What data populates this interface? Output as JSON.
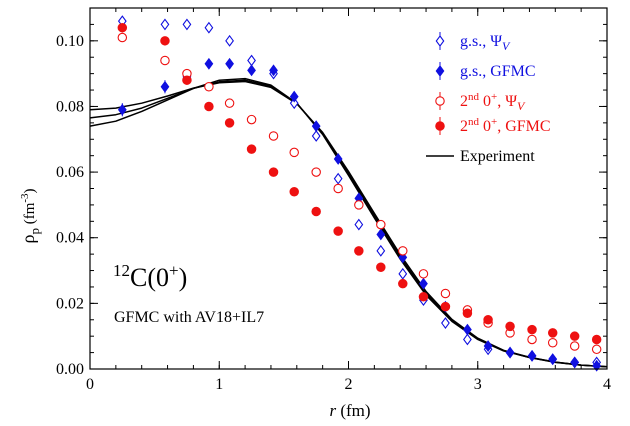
{
  "chart_data": {
    "type": "scatter",
    "xlabel": "r (fm)",
    "xlabel_italic": "r",
    "xlabel_unit": " (fm)",
    "ylabel": "ρp (fm-3)",
    "ylabel_base": "ρ",
    "ylabel_sub": "p",
    "ylabel_unit": " (fm",
    "ylabel_unit_sup": "-3",
    "ylabel_unit_close": ")",
    "xlim": [
      0,
      4
    ],
    "ylim": [
      0,
      0.11
    ],
    "x_ticks": [
      0,
      1,
      2,
      3,
      4
    ],
    "x_tick_labels": [
      "0",
      "1",
      "2",
      "3",
      "4"
    ],
    "y_ticks": [
      0,
      0.02,
      0.04,
      0.06,
      0.08,
      0.1
    ],
    "y_tick_labels": [
      "0.00",
      "0.02",
      "0.04",
      "0.06",
      "0.08",
      "0.10"
    ],
    "grid": false,
    "legend_placement": "top-right",
    "annotation": {
      "line1_sup": "12",
      "line1_main": "C(0",
      "line1_sup2": "+",
      "line1_close": ")",
      "line2": "GFMC with AV18+IL7"
    },
    "colors": {
      "blue": "#1010e0",
      "red": "#ee1111",
      "black": "#000000"
    },
    "series": [
      {
        "name": "g.s., ΨV",
        "legend_parts": [
          "g.s., Ψ",
          "V"
        ],
        "marker": "diamond-open",
        "color": "#1010e0",
        "x": [
          0.25,
          0.58,
          0.75,
          0.92,
          1.08,
          1.25,
          1.42,
          1.58,
          1.75,
          1.92,
          2.08,
          2.25,
          2.42,
          2.58,
          2.75,
          2.92,
          3.08,
          3.25,
          3.42,
          3.58,
          3.75,
          3.92
        ],
        "y": [
          0.106,
          0.105,
          0.105,
          0.104,
          0.1,
          0.094,
          0.09,
          0.081,
          0.071,
          0.058,
          0.044,
          0.036,
          0.029,
          0.021,
          0.014,
          0.009,
          0.006,
          0.005,
          0.004,
          0.003,
          0.002,
          0.002
        ]
      },
      {
        "name": "g.s., GFMC",
        "legend_parts": [
          "g.s., GFMC"
        ],
        "marker": "diamond-filled",
        "color": "#1010e0",
        "x": [
          0.25,
          0.58,
          0.75,
          0.92,
          1.08,
          1.25,
          1.42,
          1.58,
          1.75,
          1.92,
          2.08,
          2.25,
          2.42,
          2.58,
          2.75,
          2.92,
          3.08,
          3.25,
          3.42,
          3.58,
          3.75,
          3.92
        ],
        "y": [
          0.079,
          0.086,
          0.089,
          0.093,
          0.093,
          0.091,
          0.091,
          0.083,
          0.074,
          0.064,
          0.052,
          0.041,
          0.034,
          0.026,
          0.019,
          0.012,
          0.007,
          0.005,
          0.004,
          0.003,
          0.002,
          0.001
        ],
        "yerr": [
          0.002,
          0.002,
          0.001,
          0.001,
          0.001,
          0.001,
          0.001,
          0.001,
          0.001,
          0.001,
          0.001,
          0.001,
          0.001,
          0.001,
          0.001,
          0.001,
          0.001,
          0.001,
          0.001,
          0.001,
          0.001,
          0.001
        ]
      },
      {
        "name": "2nd 0+, ΨV",
        "legend_parts": [
          "2",
          "nd",
          " 0",
          "+",
          ", Ψ",
          "V"
        ],
        "marker": "circle-open",
        "color": "#ee1111",
        "x": [
          0.25,
          0.58,
          0.75,
          0.92,
          1.08,
          1.25,
          1.42,
          1.58,
          1.75,
          1.92,
          2.08,
          2.25,
          2.42,
          2.58,
          2.75,
          2.92,
          3.08,
          3.25,
          3.42,
          3.58,
          3.75,
          3.92
        ],
        "y": [
          0.101,
          0.094,
          0.09,
          0.086,
          0.081,
          0.076,
          0.071,
          0.066,
          0.06,
          0.055,
          0.05,
          0.044,
          0.036,
          0.029,
          0.023,
          0.018,
          0.014,
          0.011,
          0.009,
          0.008,
          0.007,
          0.006
        ]
      },
      {
        "name": "2nd 0+, GFMC",
        "legend_parts": [
          "2",
          "nd",
          " 0",
          "+",
          ", GFMC"
        ],
        "marker": "circle-filled",
        "color": "#ee1111",
        "x": [
          0.25,
          0.58,
          0.75,
          0.92,
          1.08,
          1.25,
          1.42,
          1.58,
          1.75,
          1.92,
          2.08,
          2.25,
          2.42,
          2.58,
          2.75,
          2.92,
          3.08,
          3.25,
          3.42,
          3.58,
          3.75,
          3.92
        ],
        "y": [
          0.104,
          0.1,
          0.088,
          0.08,
          0.075,
          0.067,
          0.06,
          0.054,
          0.048,
          0.042,
          0.036,
          0.031,
          0.026,
          0.022,
          0.019,
          0.017,
          0.015,
          0.013,
          0.012,
          0.011,
          0.01,
          0.009
        ]
      },
      {
        "name": "Experiment",
        "legend_parts": [
          "Experiment"
        ],
        "marker": "line",
        "color": "#000000",
        "curves": [
          {
            "x": [
              0,
              0.2,
              0.4,
              0.6,
              0.8,
              1.0,
              1.2,
              1.4,
              1.6,
              1.8,
              2.0,
              2.2,
              2.4,
              2.6,
              2.8,
              3.0,
              3.2,
              3.4,
              3.6,
              3.8,
              4.0
            ],
            "y": [
              0.074,
              0.0755,
              0.0785,
              0.082,
              0.0855,
              0.088,
              0.0885,
              0.0865,
              0.081,
              0.0715,
              0.059,
              0.046,
              0.0335,
              0.0225,
              0.0145,
              0.009,
              0.0055,
              0.0035,
              0.002,
              0.0012,
              0.0007
            ]
          },
          {
            "x": [
              0,
              0.2,
              0.4,
              0.6,
              0.8,
              1.0,
              1.2,
              1.4,
              1.6,
              1.8,
              2.0,
              2.2,
              2.4,
              2.6,
              2.8,
              3.0,
              3.2,
              3.4,
              3.6,
              3.8,
              4.0
            ],
            "y": [
              0.0765,
              0.0775,
              0.0795,
              0.0825,
              0.0855,
              0.0875,
              0.088,
              0.0862,
              0.081,
              0.0718,
              0.0596,
              0.0467,
              0.0342,
              0.023,
              0.0148,
              0.0092,
              0.0056,
              0.0035,
              0.0021,
              0.0012,
              0.0007
            ]
          },
          {
            "x": [
              0,
              0.2,
              0.4,
              0.6,
              0.8,
              1.0,
              1.2,
              1.4,
              1.6,
              1.8,
              2.0,
              2.2,
              2.4,
              2.6,
              2.8,
              3.0,
              3.2,
              3.4,
              3.6,
              3.8,
              4.0
            ],
            "y": [
              0.079,
              0.0795,
              0.081,
              0.0832,
              0.0856,
              0.0872,
              0.0876,
              0.0858,
              0.0808,
              0.0721,
              0.0602,
              0.0474,
              0.0349,
              0.0236,
              0.0151,
              0.0094,
              0.0057,
              0.0036,
              0.0021,
              0.0012,
              0.0007
            ]
          }
        ]
      }
    ]
  }
}
